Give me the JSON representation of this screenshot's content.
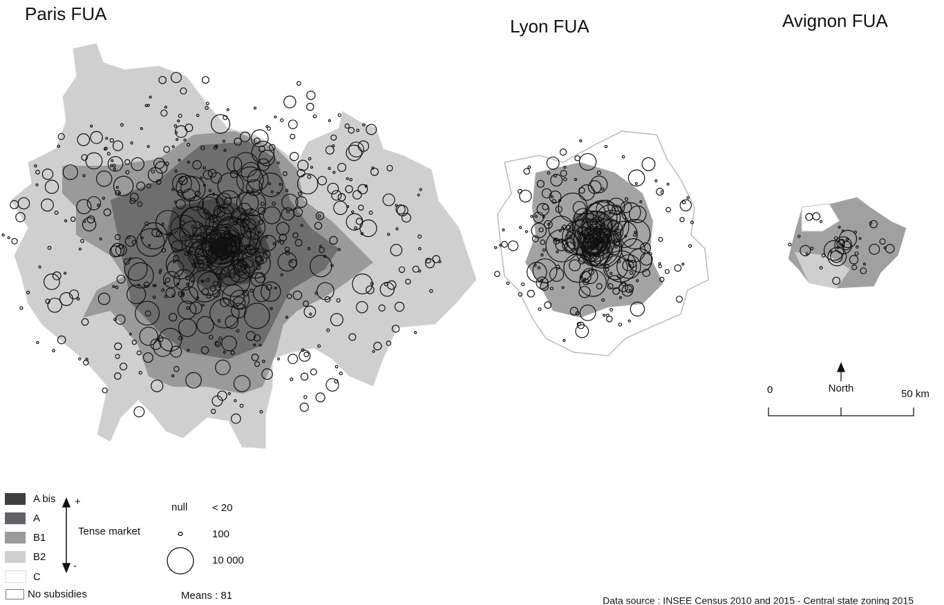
{
  "maps": [
    {
      "title": "Paris FUA"
    },
    {
      "title": "Lyon FUA"
    },
    {
      "title": "Avignon FUA"
    }
  ],
  "scale": {
    "start": "0",
    "north": "North",
    "end": "50 km"
  },
  "legend": {
    "zones": [
      "A bis",
      "A",
      "B1",
      "B2",
      "C",
      "No subsidies"
    ],
    "plus": "+",
    "minus": "-",
    "axis_label": "Tense market",
    "sizes": [
      {
        "label": "null",
        "value": "< 20"
      },
      {
        "value": "100"
      },
      {
        "value": "10 000"
      }
    ],
    "means": "Means : 81"
  },
  "source": "Data source : INSEE Census 2010 and 2015 - Central state zoning 2015"
}
